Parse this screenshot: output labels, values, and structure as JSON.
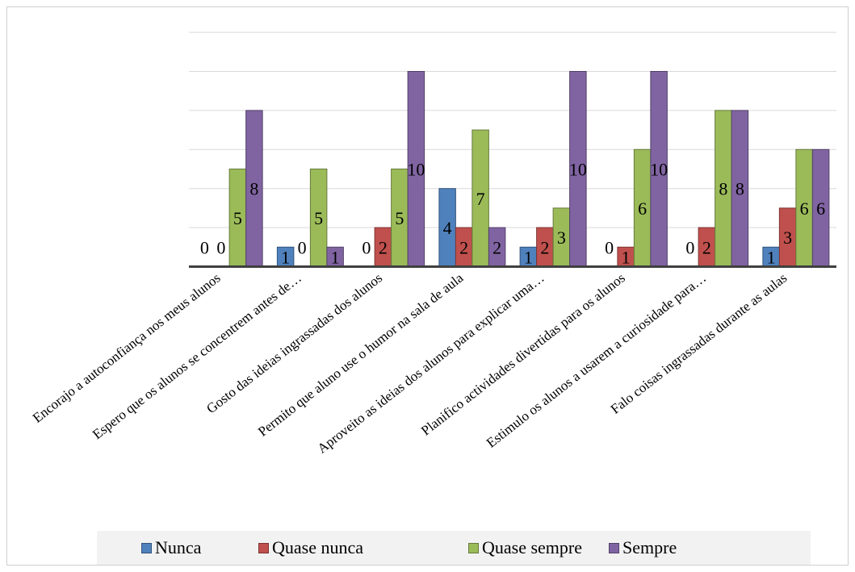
{
  "chart_data": {
    "type": "bar",
    "categories": [
      "Encorajo a autoconfiança nos meus alunos",
      "Espero que os alunos se concentrem antes de…",
      "Gosto das ideias ingrassadas dos alunos",
      "Permito que aluno use o humor na sala de aula",
      "Aproveito as ideias dos alunos para explicar uma…",
      "Planifico actividades divertidas para os alunos",
      "Estimulo os alunos a usarem a curiosidade para…",
      "Falo coisas ingrassadas durante as aulas"
    ],
    "series": [
      {
        "name": "Nunca",
        "color": "#4f81bd",
        "values": [
          0,
          1,
          0,
          4,
          1,
          0,
          0,
          1
        ]
      },
      {
        "name": "Quase nunca",
        "color": "#c0504d",
        "values": [
          0,
          0,
          2,
          2,
          2,
          1,
          2,
          3
        ]
      },
      {
        "name": "Quase sempre",
        "color": "#9bbb59",
        "values": [
          5,
          5,
          5,
          7,
          3,
          6,
          8,
          6
        ]
      },
      {
        "name": "Sempre",
        "color": "#8064a2",
        "values": [
          8,
          1,
          10,
          2,
          10,
          10,
          8,
          6
        ]
      }
    ],
    "ylim": [
      0,
      12
    ],
    "grid": true,
    "data_labels": true,
    "legend_position": "bottom"
  }
}
